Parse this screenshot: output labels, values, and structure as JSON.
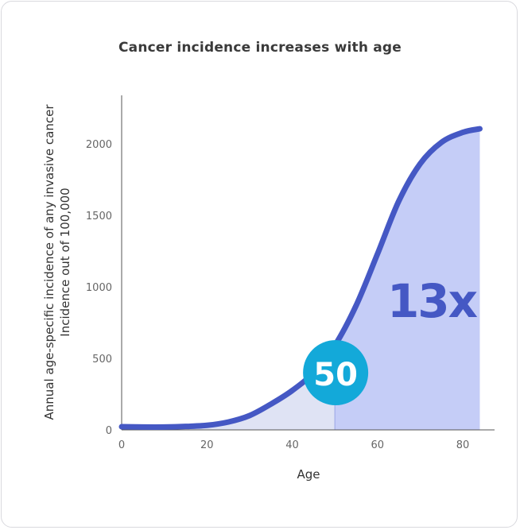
{
  "chart_data": {
    "type": "area",
    "title": "Cancer incidence increases with age",
    "xlabel": "Age",
    "ylabel_lines": [
      "Annual age-specific incidence of any invasive cancer",
      "Incidence out of 100,000"
    ],
    "xlim": [
      0,
      85
    ],
    "ylim": [
      0,
      2100
    ],
    "xticks": [
      0,
      20,
      40,
      60,
      80
    ],
    "yticks": [
      0,
      500,
      1000,
      1500,
      2000
    ],
    "series": [
      {
        "x": [
          0,
          5,
          10,
          15,
          20,
          25,
          30,
          35,
          40,
          45,
          50,
          55,
          60,
          65,
          70,
          75,
          80,
          84
        ],
        "values": [
          22,
          20,
          20,
          24,
          32,
          55,
          100,
          180,
          275,
          400,
          590,
          870,
          1230,
          1600,
          1860,
          2010,
          2080,
          2105
        ]
      }
    ],
    "highlight_split_x": 50,
    "annotations": {
      "marker_label": "50",
      "multiplier_label": "13x"
    },
    "colors": {
      "line": "#4558c4",
      "area_before": "#dfe3f4",
      "area_after": "#c5cdf7",
      "marker": "#13a9d9",
      "multiplier_text": "#4558c4",
      "axis": "#555555"
    }
  }
}
